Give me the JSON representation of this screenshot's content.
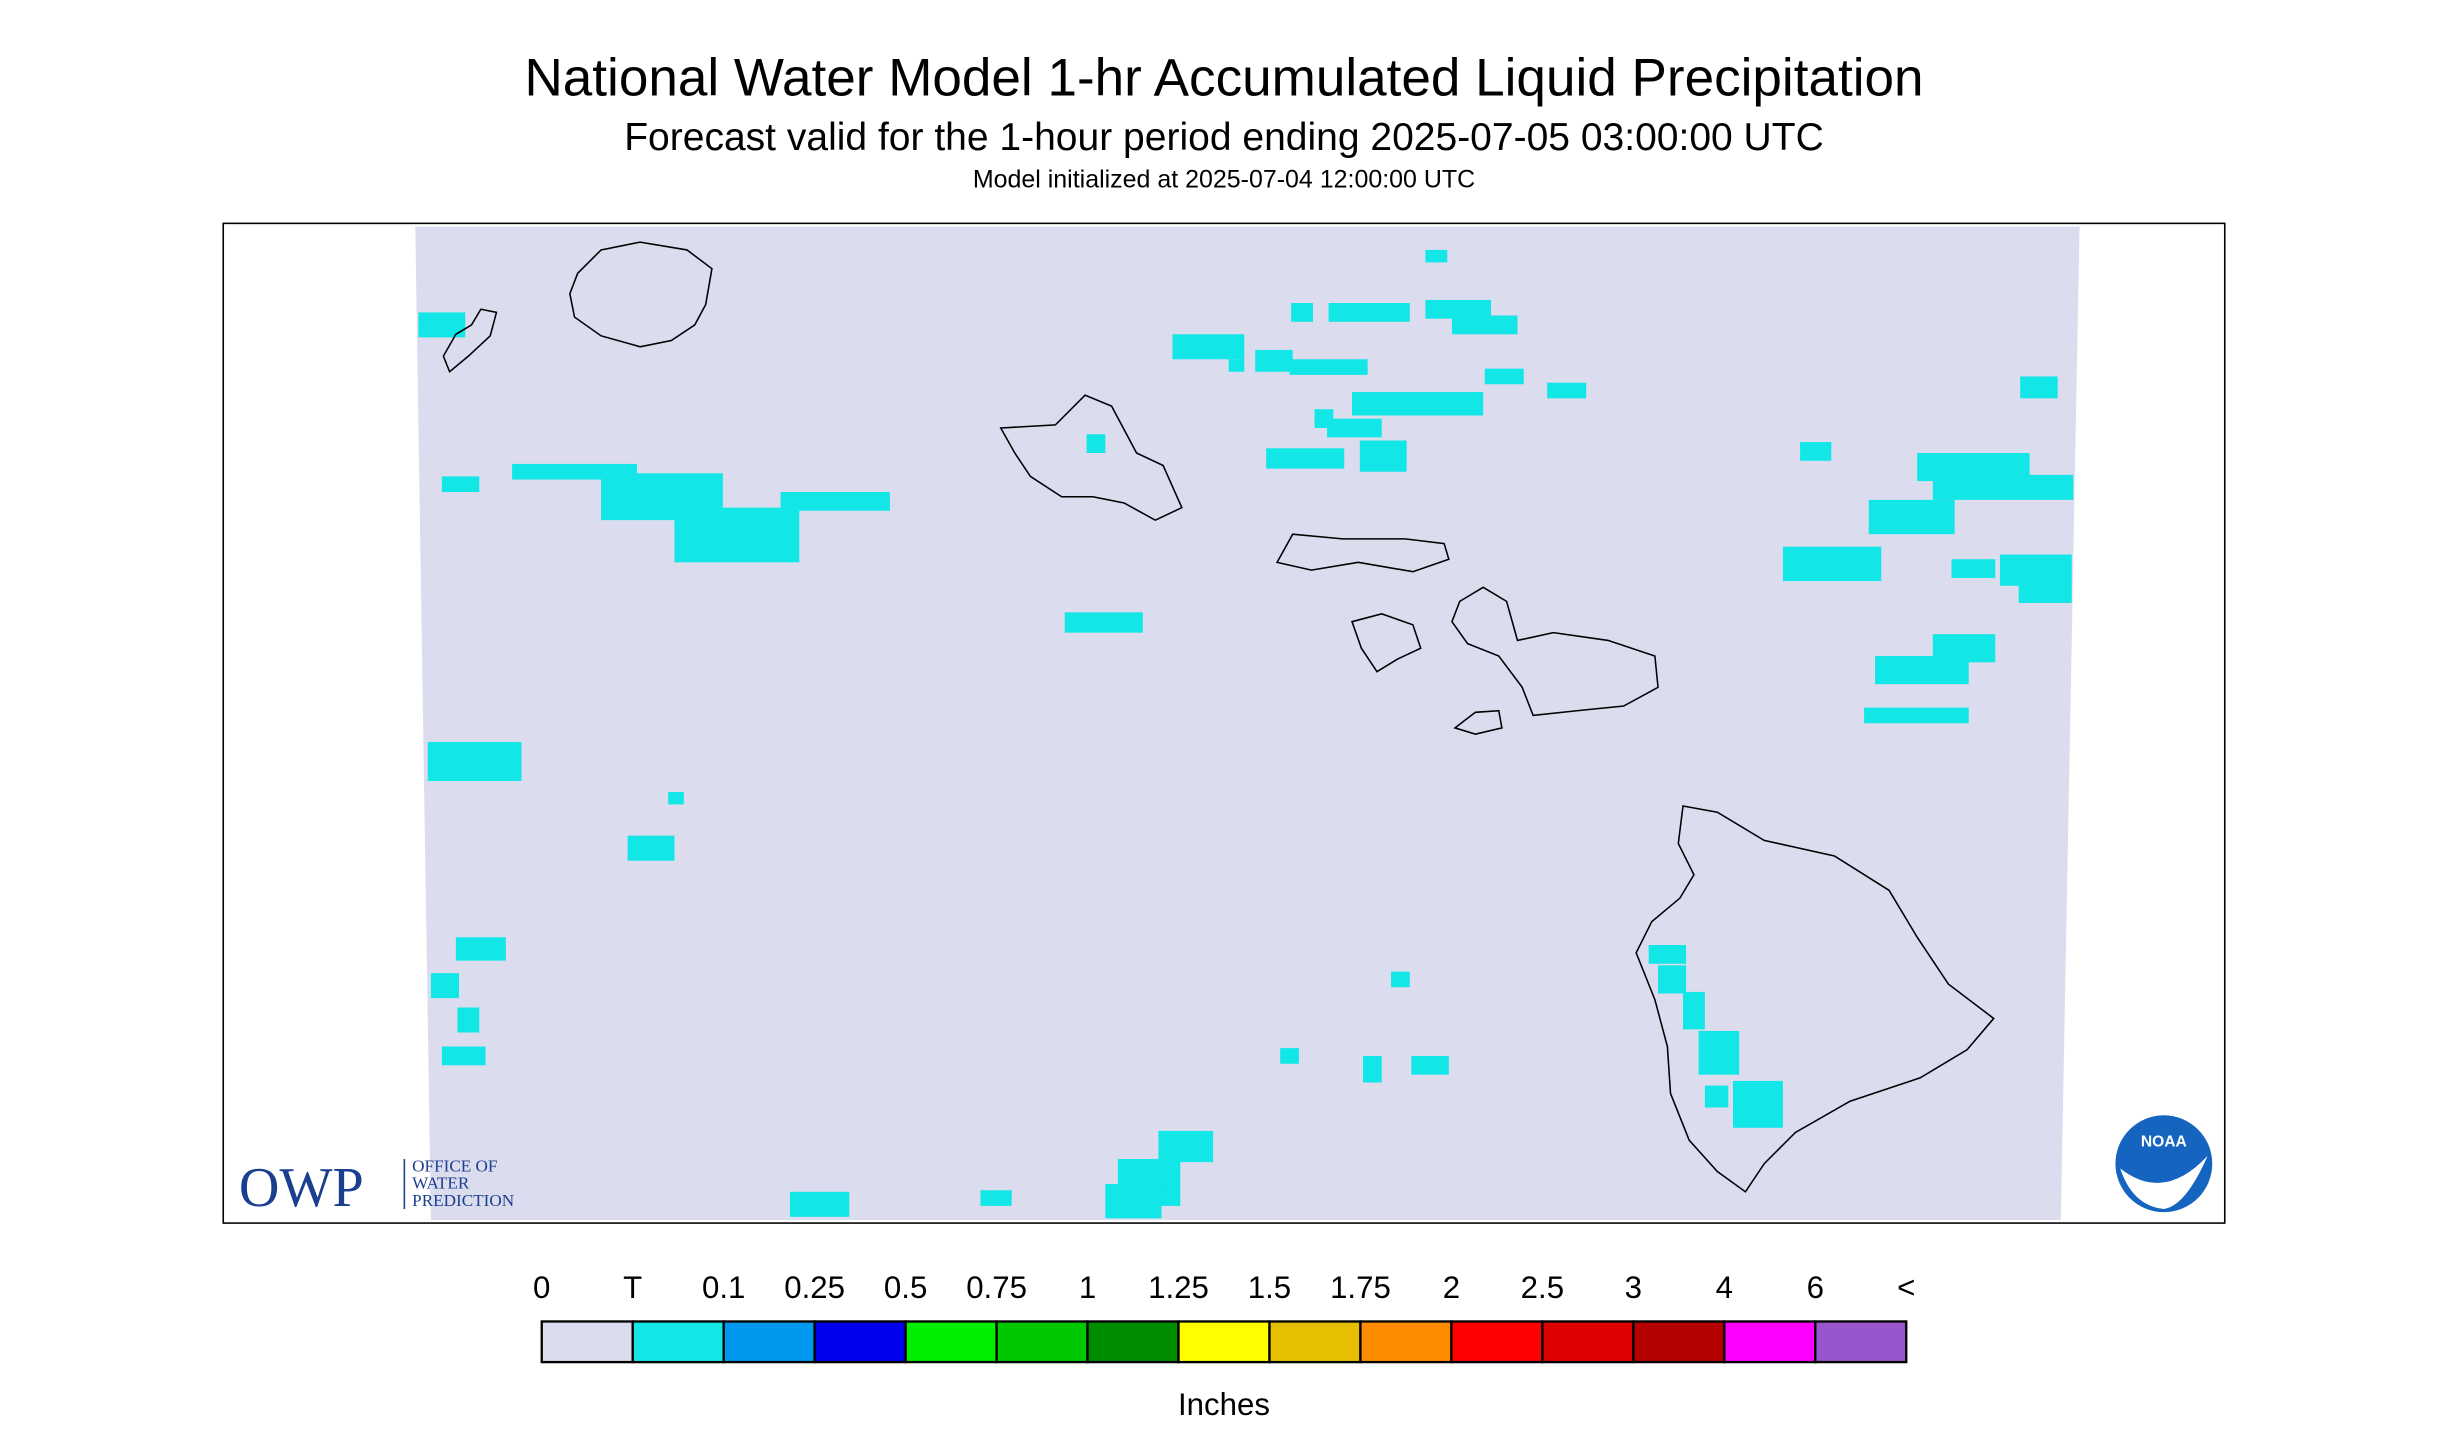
{
  "header": {
    "title": "National Water Model 1-hr Accumulated Liquid Precipitation",
    "subtitle": "Forecast valid for the 1-hour period ending 2025-07-05 03:00:00 UTC",
    "init": "Model initialized at 2025-07-04 12:00:00 UTC"
  },
  "legend": {
    "labels": [
      "0",
      "T",
      "0.1",
      "0.25",
      "0.5",
      "0.75",
      "1",
      "1.25",
      "1.5",
      "1.75",
      "2",
      "2.5",
      "3",
      "4",
      "6",
      "<"
    ],
    "colors": [
      "#dcdcef",
      "#12e6e6",
      "#0099ee",
      "#0000ee",
      "#00ee00",
      "#00c800",
      "#008c00",
      "#ffff00",
      "#e6bf00",
      "#ff8c00",
      "#ff0000",
      "#dc0000",
      "#b40000",
      "#ff00ff",
      "#9955cc"
    ],
    "unit": "Inches"
  },
  "logo": {
    "owp": "OWP",
    "lines": [
      "OFFICE OF",
      "WATER",
      "PREDICTION"
    ],
    "noaa": "NOAA"
  }
}
